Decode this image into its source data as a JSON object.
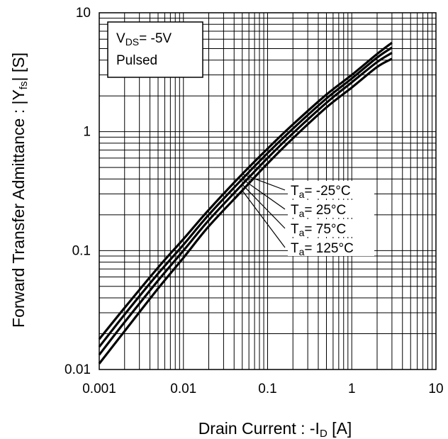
{
  "chart_data": {
    "type": "line",
    "xscale": "log",
    "yscale": "log",
    "xlim": [
      0.001,
      10
    ],
    "ylim": [
      0.01,
      10
    ],
    "grid": true,
    "xlabel_parts": {
      "pre": "Drain Current : -I",
      "sub": "D",
      "post": " [A]"
    },
    "ylabel_parts": {
      "pre": "Forward Transfer Admittance : |Y",
      "sub": "fs",
      "post": "| [S]"
    },
    "xticks": [
      {
        "value": 0.001,
        "label": "0.001"
      },
      {
        "value": 0.01,
        "label": "0.01"
      },
      {
        "value": 0.1,
        "label": "0.1"
      },
      {
        "value": 1,
        "label": "1"
      },
      {
        "value": 10,
        "label": "10"
      }
    ],
    "yticks": [
      {
        "value": 0.01,
        "label": "0.01"
      },
      {
        "value": 0.1,
        "label": "0.1"
      },
      {
        "value": 1,
        "label": "1"
      },
      {
        "value": 10,
        "label": "10"
      }
    ],
    "condition_box": {
      "line1_pre": "V",
      "line1_sub": "DS",
      "line1_post": "= -5V",
      "line2": "Pulsed"
    },
    "series": [
      {
        "name": "Ta= -25°C",
        "label": {
          "pre": "T",
          "sub": "a",
          "post": "= -25°C"
        },
        "x": [
          0.001,
          0.002,
          0.005,
          0.01,
          0.02,
          0.05,
          0.1,
          0.2,
          0.5,
          1,
          2,
          3
        ],
        "y": [
          0.018,
          0.033,
          0.072,
          0.125,
          0.22,
          0.44,
          0.72,
          1.15,
          2.05,
          3.0,
          4.5,
          5.6
        ]
      },
      {
        "name": "Ta= 25°C",
        "label": {
          "pre": "T",
          "sub": "a",
          "post": "= 25°C"
        },
        "x": [
          0.001,
          0.002,
          0.005,
          0.01,
          0.02,
          0.05,
          0.1,
          0.2,
          0.5,
          1,
          2,
          3
        ],
        "y": [
          0.0155,
          0.029,
          0.064,
          0.112,
          0.2,
          0.4,
          0.66,
          1.06,
          1.9,
          2.8,
          4.2,
          5.1
        ]
      },
      {
        "name": "Ta= 75°C",
        "label": {
          "pre": "T",
          "sub": "a",
          "post": "= 75°C"
        },
        "x": [
          0.001,
          0.002,
          0.005,
          0.01,
          0.02,
          0.05,
          0.1,
          0.2,
          0.5,
          1,
          2,
          3
        ],
        "y": [
          0.0133,
          0.025,
          0.056,
          0.1,
          0.18,
          0.36,
          0.6,
          0.97,
          1.75,
          2.6,
          3.85,
          4.6
        ]
      },
      {
        "name": "Ta= 125°C",
        "label": {
          "pre": "T",
          "sub": "a",
          "post": "= 125°C"
        },
        "x": [
          0.001,
          0.002,
          0.005,
          0.01,
          0.02,
          0.05,
          0.1,
          0.2,
          0.5,
          1,
          2,
          3
        ],
        "y": [
          0.0112,
          0.021,
          0.048,
          0.087,
          0.16,
          0.32,
          0.54,
          0.88,
          1.6,
          2.35,
          3.5,
          4.1
        ]
      }
    ],
    "pointer_x": 0.05
  }
}
